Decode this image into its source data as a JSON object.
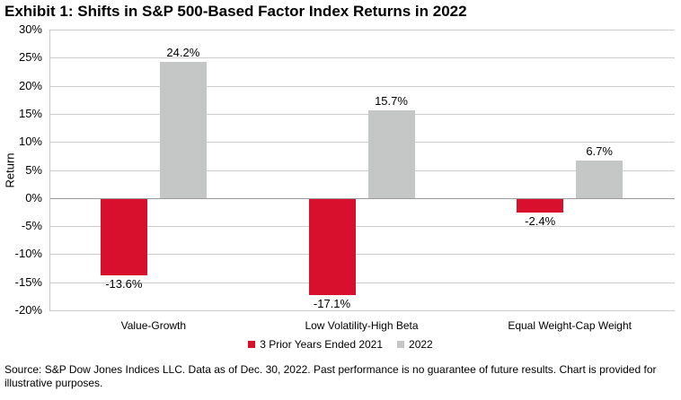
{
  "title": "Exhibit 1: Shifts in S&P 500-Based Factor Index Returns in 2022",
  "source_note": "Source: S&P Dow Jones Indices LLC. Data as of Dec. 30, 2022. Past performance is no guarantee of future results. Chart is provided for illustrative purposes.",
  "colors": {
    "series_prior_years": "#d8102e",
    "series_2022": "#c5c6c6",
    "gridline": "#cdcdcd",
    "zero_line": "#9b9b9b",
    "text": "#000000",
    "background": "#ffffff"
  },
  "chart_data": {
    "type": "bar",
    "title": "Exhibit 1: Shifts in S&P 500-Based Factor Index Returns in 2022",
    "categories": [
      "Value-Growth",
      "Low Volatility-High Beta",
      "Equal Weight-Cap Weight"
    ],
    "series": [
      {
        "name": "3 Prior Years Ended 2021",
        "color": "#d8102e",
        "values": [
          -13.6,
          -17.1,
          -2.4
        ],
        "labels": [
          "-13.6%",
          "-17.1%",
          "-2.4%"
        ]
      },
      {
        "name": "2022",
        "color": "#c5c6c6",
        "values": [
          24.2,
          15.7,
          6.7
        ],
        "labels": [
          "24.2%",
          "15.7%",
          "6.7%"
        ]
      }
    ],
    "xlabel": "",
    "ylabel": "Return",
    "ylim": [
      -20,
      30
    ],
    "yticks": [
      30,
      25,
      20,
      15,
      10,
      5,
      0,
      -5,
      -10,
      -15,
      -20
    ],
    "ytick_labels": [
      "30%",
      "25%",
      "20%",
      "15%",
      "10%",
      "5%",
      "0%",
      "-5%",
      "-10%",
      "-15%",
      "-20%"
    ],
    "grid": true,
    "legend_position": "bottom"
  }
}
